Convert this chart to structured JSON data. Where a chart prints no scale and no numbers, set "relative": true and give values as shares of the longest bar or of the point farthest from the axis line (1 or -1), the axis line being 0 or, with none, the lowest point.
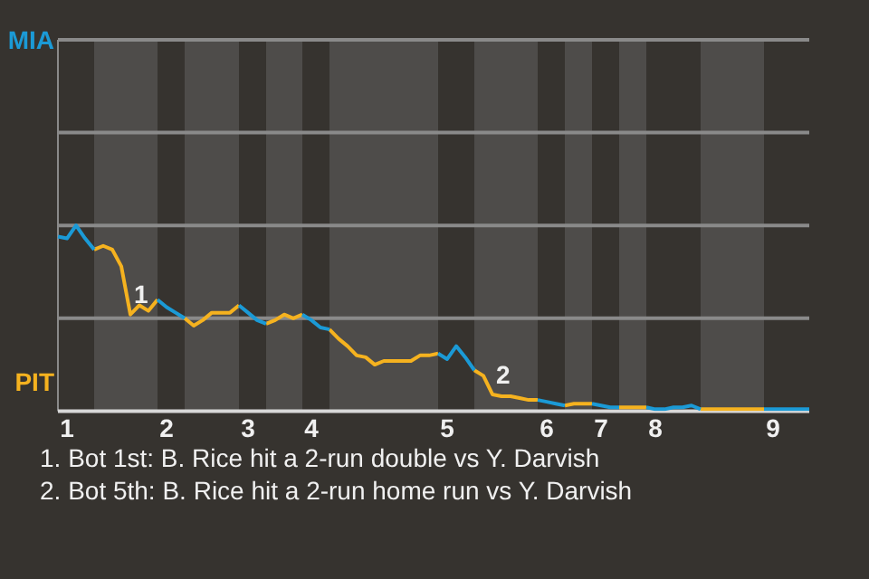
{
  "chart_data": {
    "type": "line",
    "relative": true,
    "categories": [
      null,
      "1",
      null,
      null,
      null,
      null,
      null,
      null,
      null,
      null,
      null,
      null,
      "2",
      null,
      null,
      null,
      null,
      null,
      null,
      null,
      null,
      "3",
      null,
      null,
      null,
      null,
      null,
      null,
      "4",
      null,
      null,
      null,
      null,
      null,
      null,
      null,
      null,
      null,
      null,
      null,
      null,
      null,
      null,
      "5",
      null,
      null,
      null,
      null,
      null,
      null,
      null,
      null,
      null,
      null,
      "6",
      null,
      null,
      null,
      null,
      null,
      "7",
      null,
      null,
      null,
      null,
      null,
      "8",
      null,
      null,
      null,
      null,
      null,
      null,
      null,
      null,
      null,
      null,
      null,
      null,
      "9",
      null,
      null,
      null,
      null
    ],
    "series": [
      {
        "color": "#1b9ad6",
        "values": [
          0.94,
          0.93,
          1,
          0.93,
          0.87,
          null,
          null,
          null,
          null,
          null,
          null,
          0.6,
          0.56,
          0.53,
          0.5,
          null,
          null,
          null,
          null,
          null,
          0.57,
          0.53,
          0.49,
          0.47,
          null,
          null,
          null,
          0.52,
          0.49,
          0.45,
          0.44,
          null,
          null,
          null,
          null,
          null,
          null,
          null,
          null,
          null,
          null,
          null,
          0.31,
          0.28,
          0.35,
          0.29,
          0.22,
          null,
          null,
          null,
          null,
          null,
          null,
          0.06,
          0.05,
          0.04,
          0.03,
          null,
          null,
          0.04,
          0.03,
          0.02,
          0.02,
          null,
          null,
          0.02,
          0.01,
          0.01,
          0.02,
          0.02,
          0.03,
          0.01,
          null,
          null,
          null,
          null,
          null,
          null,
          0.01,
          0.01,
          0.01,
          0.01,
          0.01,
          0.01
        ]
      },
      {
        "color": "#f5b21f",
        "values": [
          null,
          null,
          null,
          null,
          0.87,
          0.89,
          0.87,
          0.78,
          0.52,
          0.57,
          0.54,
          0.6,
          null,
          null,
          0.5,
          0.46,
          0.49,
          0.53,
          0.53,
          0.53,
          0.57,
          null,
          null,
          0.47,
          0.49,
          0.52,
          0.5,
          0.52,
          null,
          null,
          0.44,
          0.39,
          0.35,
          0.3,
          0.29,
          0.25,
          0.27,
          0.27,
          0.27,
          0.27,
          0.3,
          0.3,
          0.31,
          null,
          null,
          null,
          0.22,
          0.19,
          0.09,
          0.08,
          0.08,
          0.07,
          0.06,
          0.06,
          null,
          null,
          0.03,
          0.04,
          0.04,
          0.04,
          null,
          null,
          0.02,
          0.02,
          0.02,
          0.02,
          null,
          null,
          null,
          null,
          null,
          0.01,
          0.01,
          0.01,
          0.01,
          0.01,
          0.01,
          0.01,
          0.01,
          null,
          null,
          null,
          null,
          null
        ]
      }
    ],
    "annotations": [
      "MIA",
      "PIT",
      "1",
      "2",
      "1. Bot 1st: B. Rice hit a 2-run double vs Y. Darvish",
      "2. Bot 5th: B. Rice hit a 2-run home run vs Y. Darvish"
    ],
    "ref_lines": [
      {
        "axis": "y",
        "value": 0.5,
        "color": "#8a8a8a"
      },
      {
        "axis": "y",
        "value": 1,
        "color": "#8a8a8a"
      },
      {
        "axis": "y",
        "value": 1.5,
        "color": "#8a8a8a"
      },
      {
        "axis": "y",
        "value": 2,
        "color": "#8a8a8a"
      }
    ],
    "legend": false,
    "marker": "none",
    "line_style": "solid"
  }
}
